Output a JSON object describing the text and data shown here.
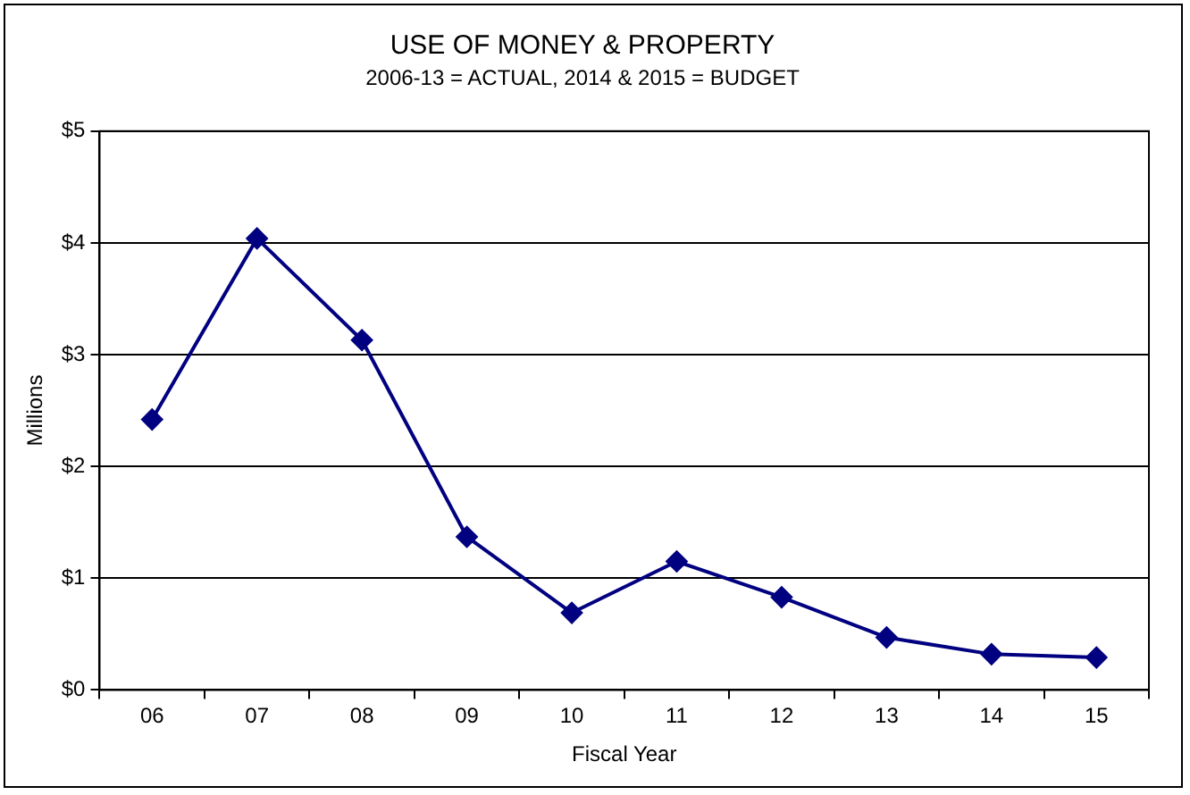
{
  "chart_data": {
    "type": "line",
    "title": "USE OF MONEY & PROPERTY",
    "subtitle": "2006-13 = ACTUAL, 2014 & 2015 = BUDGET",
    "xlabel": "Fiscal Year",
    "ylabel": "Millions",
    "categories": [
      "06",
      "07",
      "08",
      "09",
      "10",
      "11",
      "12",
      "13",
      "14",
      "15"
    ],
    "series": [
      {
        "color": "#000080",
        "values": [
          2.42,
          4.04,
          3.13,
          1.37,
          0.69,
          1.15,
          0.83,
          0.47,
          0.32,
          0.29
        ]
      }
    ],
    "ylim": [
      0,
      5
    ],
    "yticks": [
      {
        "value": 0,
        "label": "$0"
      },
      {
        "value": 1,
        "label": "$1"
      },
      {
        "value": 2,
        "label": "$2"
      },
      {
        "value": 3,
        "label": "$3"
      },
      {
        "value": 4,
        "label": "$4"
      },
      {
        "value": 5,
        "label": "$5"
      }
    ],
    "grid": "y",
    "legend": false,
    "marker": "diamond",
    "line_style": "solid"
  }
}
